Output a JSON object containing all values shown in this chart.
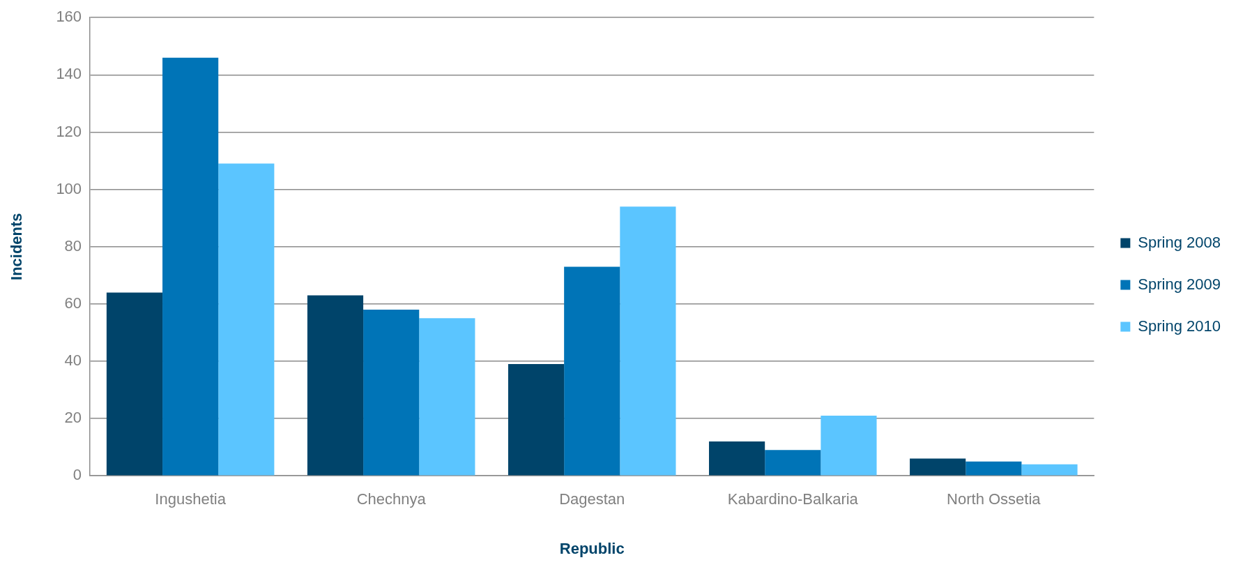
{
  "chart_data": {
    "type": "bar",
    "xlabel": "Republic",
    "ylabel": "Incidents",
    "categories": [
      "Ingushetia",
      "Chechnya",
      "Dagestan",
      "Kabardino-Balkaria",
      "North Ossetia"
    ],
    "series": [
      {
        "name": "Spring 2008",
        "color": "#00446a",
        "values": [
          64,
          63,
          39,
          12,
          6
        ]
      },
      {
        "name": "Spring 2009",
        "color": "#0074b7",
        "values": [
          146,
          58,
          73,
          9,
          5
        ]
      },
      {
        "name": "Spring 2010",
        "color": "#5bc5ff",
        "values": [
          109,
          55,
          94,
          21,
          4
        ]
      }
    ],
    "ylim": [
      0,
      160
    ],
    "yticks": [
      0,
      20,
      40,
      60,
      80,
      100,
      120,
      140,
      160
    ],
    "grid": "y",
    "legend": "right"
  }
}
